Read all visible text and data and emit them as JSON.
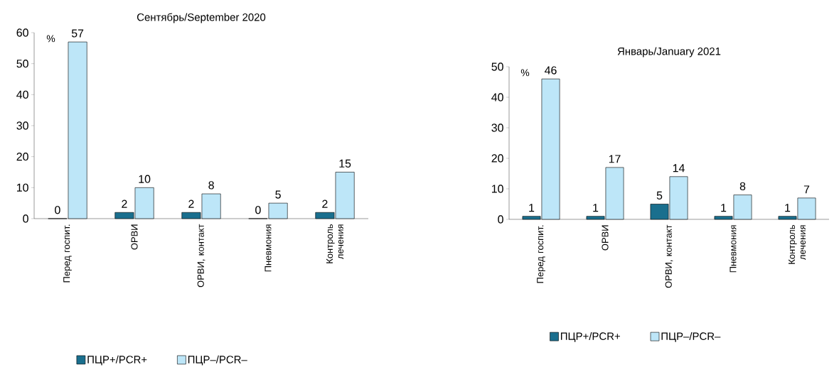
{
  "chart_data": [
    {
      "type": "bar",
      "title": "Сентябрь/September 2020",
      "ylabel": "%",
      "categories": [
        "Перед госпит.",
        "ОРВИ",
        "ОРВИ, контакт",
        "Пневмония",
        "Контроль лечения"
      ],
      "series": [
        {
          "name": "ПЦР+/PCR+",
          "color": "#1a6f8e",
          "values": [
            0,
            2,
            2,
            0,
            2
          ]
        },
        {
          "name": "ПЦР–/PCR–",
          "color": "#bde6f8",
          "values": [
            57,
            10,
            8,
            5,
            15
          ]
        }
      ],
      "ylim": [
        0,
        60
      ],
      "yticks": [
        0,
        10,
        20,
        30,
        40,
        50,
        60
      ],
      "data_labels": true,
      "legend": "bottom"
    },
    {
      "type": "bar",
      "title": "Январь/January 2021",
      "ylabel": "%",
      "categories": [
        "Перед госпит.",
        "ОРВИ",
        "ОРВИ, контакт",
        "Пневмония",
        "Контроль лечения"
      ],
      "series": [
        {
          "name": "ПЦР+/PCR+",
          "color": "#1a6f8e",
          "values": [
            1,
            1,
            5,
            1,
            1
          ]
        },
        {
          "name": "ПЦР–/PCR–",
          "color": "#bde6f8",
          "values": [
            46,
            17,
            14,
            8,
            7
          ]
        }
      ],
      "ylim": [
        0,
        50
      ],
      "yticks": [
        0,
        10,
        20,
        30,
        40,
        50
      ],
      "data_labels": true,
      "legend": "bottom"
    }
  ]
}
